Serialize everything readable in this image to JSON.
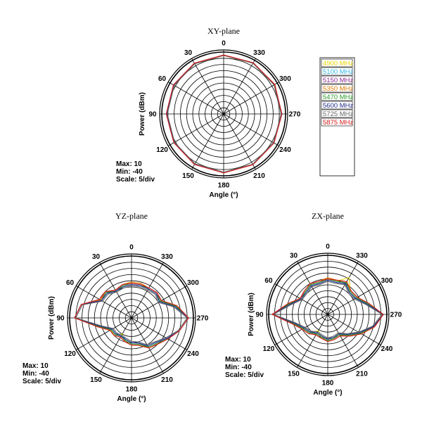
{
  "chart_data": {
    "type": "polar",
    "angle_labels": [
      "0",
      "30",
      "60",
      "90",
      "120",
      "150",
      "180",
      "210",
      "240",
      "270",
      "300",
      "330"
    ],
    "rlim": [
      -40,
      10
    ],
    "r_step": 5,
    "xlabel": "Angle (°)",
    "ylabel": "Power (dBm)",
    "stats": {
      "max": "Max: 10",
      "min": "Min: -40",
      "scale": "Scale: 5/div"
    },
    "legend": [
      {
        "name": "4900 MHz",
        "color": "#e6d400"
      },
      {
        "name": "5100 MHz",
        "color": "#33b5e5"
      },
      {
        "name": "5150 MHz",
        "color": "#8e2a8e"
      },
      {
        "name": "5350 MHz",
        "color": "#e07b00"
      },
      {
        "name": "5470 MHz",
        "color": "#2a9a2a"
      },
      {
        "name": "5600 MHz",
        "color": "#1f2a8c"
      },
      {
        "name": "5725 MHz",
        "color": "#666666"
      },
      {
        "name": "5875 MHz",
        "color": "#d11a1a"
      }
    ],
    "planes": [
      {
        "title": "XY-plane",
        "show_stats": true,
        "show_legend": true,
        "angles": [
          0,
          30,
          60,
          90,
          120,
          150,
          180,
          210,
          240,
          270,
          300,
          330
        ],
        "series": [
          [
            7.5,
            7.2,
            6.6,
            6.1,
            6.3,
            7.0,
            7.4,
            7.2,
            6.8,
            6.9,
            7.4,
            7.6
          ],
          [
            7.4,
            7.0,
            6.5,
            5.9,
            6.1,
            6.8,
            7.3,
            7.1,
            6.6,
            6.7,
            7.2,
            7.5
          ],
          [
            7.6,
            7.3,
            6.8,
            6.2,
            6.4,
            7.1,
            7.5,
            7.3,
            6.9,
            7.0,
            7.5,
            7.7
          ],
          [
            7.3,
            6.9,
            6.2,
            5.6,
            5.9,
            6.6,
            7.2,
            7.0,
            6.5,
            6.6,
            7.8,
            7.4
          ],
          [
            7.5,
            7.1,
            6.4,
            5.8,
            6.0,
            6.9,
            7.3,
            7.1,
            6.7,
            6.8,
            7.3,
            7.6
          ],
          [
            7.4,
            7.2,
            6.7,
            6.0,
            6.2,
            6.9,
            7.4,
            7.2,
            6.7,
            6.8,
            7.3,
            7.5
          ],
          [
            7.2,
            6.8,
            6.1,
            5.5,
            5.8,
            6.5,
            7.1,
            6.9,
            6.4,
            6.5,
            7.0,
            7.3
          ],
          [
            7.6,
            7.4,
            6.9,
            6.4,
            6.5,
            7.2,
            7.6,
            7.4,
            7.0,
            7.1,
            7.6,
            7.8
          ]
        ]
      },
      {
        "title": "YZ-plane",
        "show_stats": true,
        "show_legend": false,
        "angles": [
          0,
          15,
          30,
          45,
          60,
          75,
          90,
          105,
          120,
          135,
          150,
          165,
          180,
          195,
          210,
          225,
          240,
          255,
          270,
          285,
          300,
          315,
          330,
          345
        ],
        "series": [
          [
            -12,
            -13,
            -15,
            -10,
            -11,
            2,
            6,
            -12,
            -20,
            -21,
            -25,
            -20,
            -18,
            -17,
            -12,
            -10,
            -6,
            0,
            6,
            -2,
            -12,
            -12,
            -13,
            -12
          ],
          [
            -13,
            -14,
            -15,
            -12,
            -12,
            2,
            6,
            -14,
            -22,
            -22,
            -24,
            -22,
            -20,
            -19,
            -14,
            -12,
            -7,
            0,
            6,
            -4,
            -14,
            -12,
            -13,
            -13
          ],
          [
            -12,
            -13,
            -14,
            -11,
            -11,
            2,
            6,
            -13,
            -21,
            -21,
            -23,
            -21,
            -19,
            -18,
            -13,
            -11,
            -6,
            0,
            6,
            -3,
            -13,
            -11,
            -12,
            -12
          ],
          [
            -11,
            -12,
            -14,
            -10,
            -11,
            2,
            6,
            -12,
            -20,
            -20,
            -22,
            -20,
            -18,
            -17,
            -12,
            -10,
            -6,
            0,
            6,
            -2,
            -12,
            -11,
            -12,
            -11
          ],
          [
            -12,
            -13,
            -15,
            -11,
            -12,
            2,
            6,
            -13,
            -21,
            -21,
            -23,
            -21,
            -19,
            -18,
            -13,
            -11,
            -6,
            0,
            6,
            -3,
            -13,
            -12,
            -13,
            -12
          ],
          [
            -13,
            -14,
            -15,
            -12,
            -12,
            2,
            6,
            -14,
            -22,
            -22,
            -23,
            -22,
            -20,
            -19,
            -14,
            -12,
            -7,
            0,
            6,
            -4,
            -14,
            -12,
            -13,
            -13
          ],
          [
            -14,
            -15,
            -16,
            -13,
            -13,
            1,
            5,
            -15,
            -23,
            -23,
            -24,
            -23,
            -21,
            -20,
            -15,
            -13,
            -8,
            -1,
            5,
            -5,
            -15,
            -13,
            -14,
            -14
          ],
          [
            -12,
            -12,
            -14,
            -10,
            -10,
            2,
            6,
            -12,
            -20,
            -20,
            -22,
            -20,
            -18,
            -17,
            -12,
            -10,
            -6,
            0,
            6,
            -2,
            -12,
            -11,
            -12,
            -12
          ]
        ]
      },
      {
        "title": "ZX-plane",
        "show_stats": true,
        "show_legend": false,
        "angles": [
          0,
          15,
          30,
          45,
          60,
          75,
          90,
          105,
          120,
          135,
          150,
          165,
          180,
          195,
          210,
          225,
          240,
          255,
          270,
          285,
          300,
          315,
          330,
          345
        ],
        "series": [
          [
            -10,
            -12,
            -11,
            -13,
            -14,
            -6,
            7,
            -10,
            -16,
            -18,
            -24,
            -20,
            -18,
            -19,
            -22,
            -15,
            -8,
            0,
            7,
            -5,
            -12,
            -13,
            -4,
            -11
          ],
          [
            -11,
            -13,
            -12,
            -14,
            -14,
            -6,
            7,
            -11,
            -17,
            -19,
            -22,
            -21,
            -19,
            -20,
            -21,
            -16,
            -9,
            0,
            7,
            -6,
            -13,
            -14,
            -10,
            -12
          ],
          [
            -10,
            -12,
            -11,
            -13,
            -13,
            -6,
            7,
            -10,
            -16,
            -18,
            -21,
            -20,
            -18,
            -19,
            -20,
            -15,
            -8,
            0,
            7,
            -5,
            -12,
            -13,
            -9,
            -11
          ],
          [
            -9,
            -11,
            -10,
            -12,
            -13,
            -5,
            7,
            -9,
            -15,
            -17,
            -20,
            -19,
            -17,
            -18,
            -19,
            -14,
            -7,
            1,
            7,
            -4,
            -11,
            -12,
            -8,
            -10
          ],
          [
            -10,
            -12,
            -11,
            -13,
            -14,
            -6,
            7,
            -10,
            -16,
            -18,
            -21,
            -20,
            -18,
            -19,
            -20,
            -15,
            -8,
            0,
            7,
            -5,
            -12,
            -13,
            -9,
            -11
          ],
          [
            -11,
            -13,
            -12,
            -14,
            -14,
            -7,
            7,
            -11,
            -17,
            -19,
            -22,
            -21,
            -19,
            -20,
            -21,
            -16,
            -9,
            0,
            7,
            -6,
            -13,
            -14,
            -10,
            -12
          ],
          [
            -12,
            -14,
            -13,
            -15,
            -15,
            -8,
            6,
            -12,
            -18,
            -20,
            -23,
            -22,
            -20,
            -21,
            -22,
            -17,
            -10,
            -1,
            6,
            -7,
            -14,
            -15,
            -11,
            -13
          ],
          [
            -10,
            -11,
            -10,
            -12,
            -13,
            -5,
            7,
            -9,
            -15,
            -17,
            -20,
            -19,
            -17,
            -18,
            -19,
            -14,
            -7,
            1,
            7,
            -4,
            -11,
            -12,
            -8,
            -10
          ]
        ]
      }
    ]
  }
}
